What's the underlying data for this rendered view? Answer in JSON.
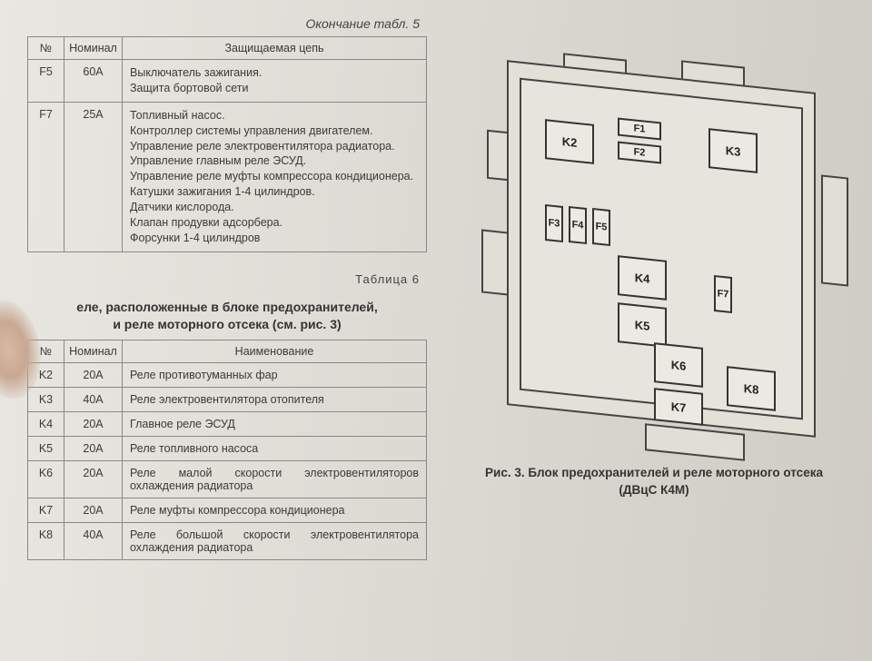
{
  "table5": {
    "caption": "Окончание табл. 5",
    "headers": {
      "n": "№",
      "nominal": "Номинал",
      "circuit": "Защищаемая цепь"
    },
    "rows": [
      {
        "n": "F5",
        "nominal": "60A",
        "desc": "Выключатель зажигания.\nЗащита бортовой сети"
      },
      {
        "n": "F7",
        "nominal": "25A",
        "desc": "Топливный насос.\nКонтроллер системы управления двигателем.\nУправление реле электровентилятора радиатора.\nУправление главным реле ЭСУД.\nУправление реле муфты компрессора кондиционера.\nКатушки зажигания 1-4 цилиндров.\nДатчики кислорода.\nКлапан продувки адсорбера.\nФорсунки 1-4 цилиндров"
      }
    ]
  },
  "table6": {
    "label": "Таблица 6",
    "title_line1": "еле, расположенные в блоке предохранителей,",
    "title_line2": "и реле моторного отсека (см. рис. 3)",
    "headers": {
      "n": "№",
      "nominal": "Номинал",
      "name": "Наименование"
    },
    "rows": [
      {
        "n": "K2",
        "nominal": "20A",
        "desc": "Реле противотуманных фар"
      },
      {
        "n": "K3",
        "nominal": "40A",
        "desc": "Реле электровентилятора отопителя"
      },
      {
        "n": "K4",
        "nominal": "20A",
        "desc": "Главное реле ЭСУД"
      },
      {
        "n": "K5",
        "nominal": "20A",
        "desc": "Реле топливного насоса"
      },
      {
        "n": "K6",
        "nominal": "20A",
        "desc": "Реле малой скорости электровентиляторов охлаждения радиатора"
      },
      {
        "n": "K7",
        "nominal": "20A",
        "desc": "Реле муфты компрессора кондиционера"
      },
      {
        "n": "K8",
        "nominal": "40A",
        "desc": "Реле большой скорости электровентилятора охлаждения радиатора"
      }
    ]
  },
  "figure": {
    "caption_bold": "Рис. 3. Блок предохранителей и реле моторного отсека",
    "caption_sub": "(ДВцС К4М)",
    "labels": {
      "K2": "K2",
      "K3": "K3",
      "K4": "K4",
      "K5": "K5",
      "K6": "K6",
      "K7": "K7",
      "K8": "K8",
      "F1": "F1",
      "F2": "F2",
      "F3": "F3",
      "F4": "F4",
      "F5": "F5",
      "F7": "F7"
    }
  },
  "colors": {
    "page_bg": "#dedcd5",
    "border": "#888888",
    "text": "#3a3a3a",
    "diagram_stroke": "#444444"
  }
}
